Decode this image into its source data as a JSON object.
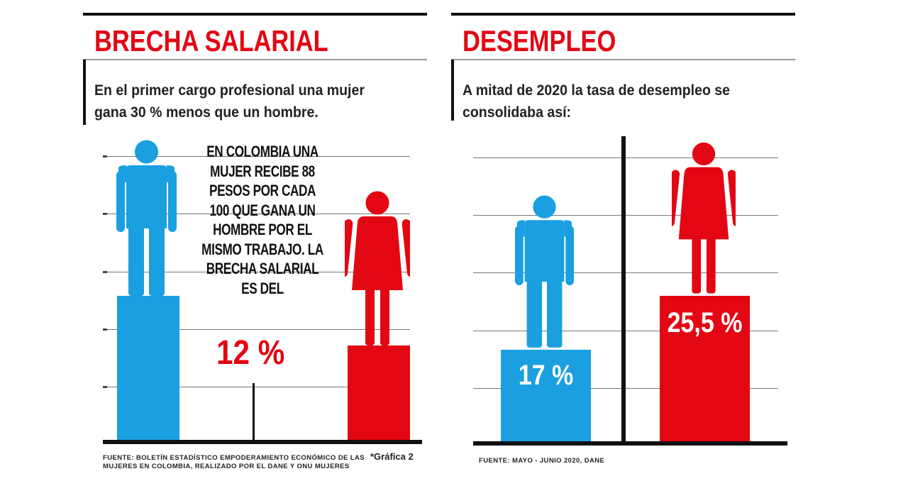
{
  "colors": {
    "accent": "#e30613",
    "men": "#1a9fe0",
    "women": "#e30613",
    "axis": "#111111"
  },
  "left": {
    "title": "BRECHA SALARIAL",
    "subtitle_lines": [
      "En el primer cargo profesional una mujer",
      "gana 30 % menos que un hombre."
    ],
    "callout": "EN COLOMBIA UNA\nMUJER RECIBE 88\nPESOS POR CADA\n100 QUE GANA UN\nHOMBRE POR EL\nMISMO TRABAJO. LA\nBRECHA SALARIAL\nES DEL",
    "gap_value": "12 %",
    "source_lines": [
      "FUENTE: BOLETÍN ESTADÍSTICO EMPODERAMIENTO ECONÓMICO DE LAS",
      "MUJERES EN COLOMBIA, REALIZADO POR EL DANE Y ONU MUJERES"
    ],
    "note": "*Gráfica 2"
  },
  "right": {
    "title": "DESEMPLEO",
    "subtitle_lines": [
      "A mitad de 2020 la tasa de desempleo se",
      "consolidaba así:"
    ],
    "source": "FUENTE: MAYO - JUNIO 2020, DANE"
  },
  "chart_data": [
    {
      "type": "bar",
      "title": "BRECHA SALARIAL",
      "categories": [
        "Hombre",
        "Mujer"
      ],
      "values": [
        100,
        88
      ],
      "ylim": [
        65,
        138
      ],
      "xlabel": "",
      "ylabel": "",
      "grid": true,
      "annotation": "12 %"
    },
    {
      "type": "bar",
      "title": "DESEMPLEO",
      "categories": [
        "Hombre",
        "Mujer"
      ],
      "values": [
        17,
        25.5
      ],
      "labels": [
        "17 %",
        "25,5 %"
      ],
      "ylim": [
        2.6,
        50.7
      ],
      "xlabel": "",
      "ylabel": "",
      "grid": true
    }
  ]
}
